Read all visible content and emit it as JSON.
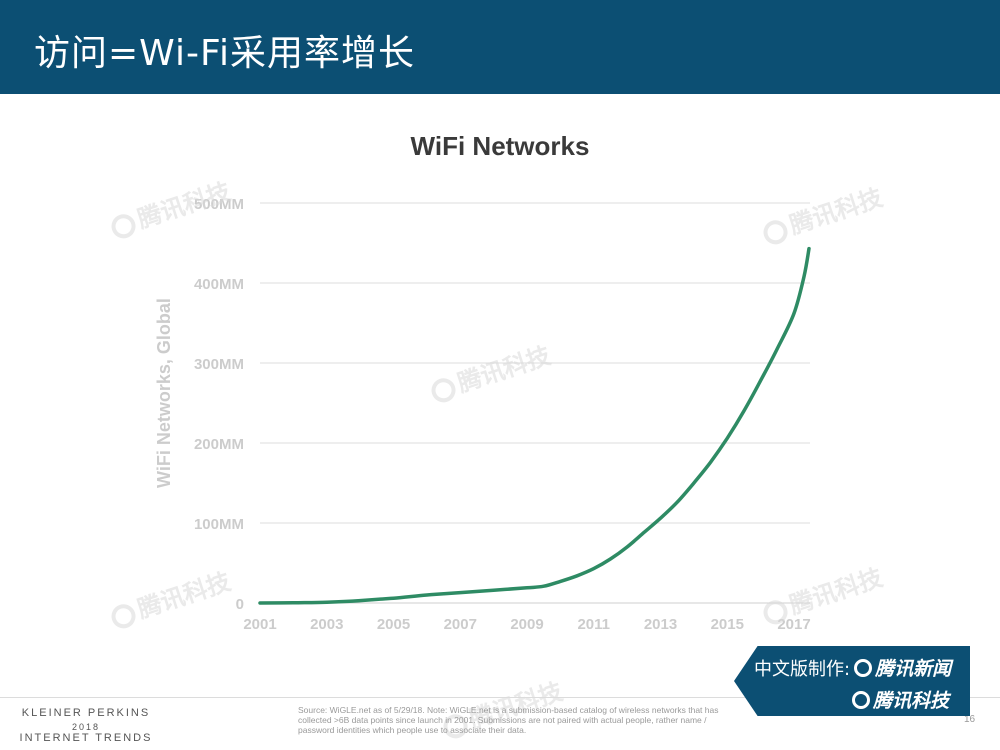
{
  "header": {
    "title": "访问=Wi-Fi采用率增长"
  },
  "colors": {
    "header_bg": "#0c4f73",
    "line": "#2e8b64",
    "grid": "#dcdcdc",
    "axis_text": "#cccccc"
  },
  "chart_data": {
    "type": "line",
    "title": "WiFi Networks",
    "ylabel": "WiFi Networks, Global",
    "xlabel": "",
    "x_ticks": [
      "2001",
      "2003",
      "2005",
      "2007",
      "2009",
      "2011",
      "2013",
      "2015",
      "2017"
    ],
    "y_ticks": [
      "0",
      "100MM",
      "200MM",
      "300MM",
      "400MM",
      "500MM"
    ],
    "xlim": [
      2001,
      2017.5
    ],
    "ylim": [
      0,
      500
    ],
    "y_unit": "MM",
    "grid": true,
    "series": [
      {
        "x": [
          2001,
          2002,
          2003,
          2004,
          2005,
          2006,
          2007,
          2008,
          2009,
          2009.5,
          2010,
          2010.5,
          2011,
          2011.5,
          2012,
          2012.5,
          2013,
          2013.5,
          2014,
          2014.5,
          2015,
          2015.5,
          2016,
          2016.5,
          2017,
          2017.3,
          2017.45
        ],
        "values": [
          0,
          0.3,
          1,
          3,
          6,
          10,
          13,
          16,
          19,
          21,
          27,
          34,
          43,
          55,
          70,
          88,
          106,
          126,
          150,
          176,
          206,
          240,
          278,
          318,
          362,
          408,
          443
        ]
      }
    ]
  },
  "watermark": {
    "text": "腾讯科技"
  },
  "footer": {
    "brand_line1": "KLEINER PERKINS",
    "brand_line2": "2018",
    "brand_line3": "INTERNET TRENDS",
    "source": "Source: WiGLE.net as of 5/29/18. Note: WiGLE.net is a submission-based catalog of wireless networks that has collected >6B data points since launch in 2001. Submissions are not paired with actual people, rather name / password identities which people use to associate their data.",
    "page_number": "16"
  },
  "credit": {
    "label": "中文版制作:",
    "brand1": "腾讯新闻",
    "brand2": "腾讯科技"
  }
}
